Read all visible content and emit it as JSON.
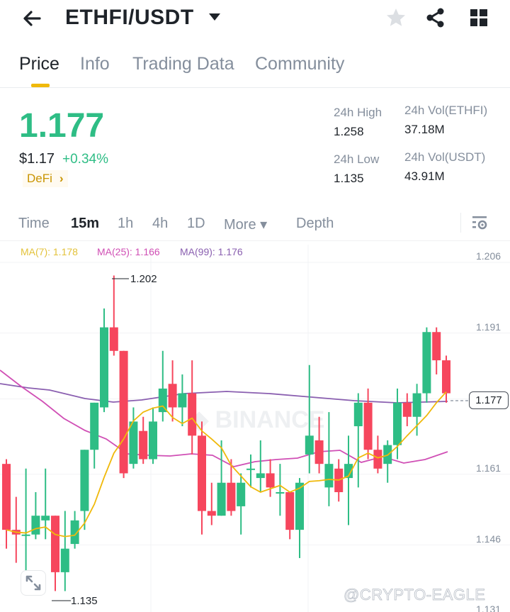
{
  "header": {
    "pair": "ETHFI/USDT",
    "icons": [
      "back-arrow-icon",
      "caret-down-icon",
      "star-icon",
      "share-icon",
      "grid-icon"
    ]
  },
  "tabs": [
    {
      "label": "Price",
      "active": true
    },
    {
      "label": "Info",
      "active": false
    },
    {
      "label": "Trading Data",
      "active": false
    },
    {
      "label": "Community",
      "active": false
    }
  ],
  "ticker": {
    "last_price": "1.177",
    "usd_price": "$1.17",
    "change": "+0.34%",
    "tag": "DeFi",
    "tag_chevron": "›",
    "high_label": "24h High",
    "high_value": "1.258",
    "low_label": "24h Low",
    "low_value": "1.135",
    "vol_base_label": "24h Vol(ETHFI)",
    "vol_base_value": "37.18M",
    "vol_quote_label": "24h Vol(USDT)",
    "vol_quote_value": "43.91M"
  },
  "intervals": [
    {
      "label": "Time",
      "active": false
    },
    {
      "label": "15m",
      "active": true
    },
    {
      "label": "1h",
      "active": false
    },
    {
      "label": "4h",
      "active": false
    },
    {
      "label": "1D",
      "active": false
    },
    {
      "label": "More ▾",
      "active": false
    },
    {
      "label": "Depth",
      "active": false
    }
  ],
  "ma": {
    "ma7": "MA(7): 1.178",
    "ma25": "MA(25): 1.166",
    "ma99": "MA(99): 1.176"
  },
  "colors": {
    "up": "#2ebd85",
    "down": "#f6465d",
    "ma7": "#f0b90b",
    "ma25": "#d04fb5",
    "ma99": "#8a5fb0",
    "accent": "#f0b90b"
  },
  "chart": {
    "current_price_label": "1.177",
    "high_marker": "1.202",
    "low_marker": "1.135",
    "watermark": "BINANCE",
    "credit": "@CRYPTO-EAGLE"
  },
  "chart_data": {
    "type": "candlestick",
    "title": "ETHFI/USDT 15m",
    "y_ticks": [
      "1.206",
      "1.191",
      "1.177",
      "1.161",
      "1.146",
      "1.131"
    ],
    "ylim": [
      1.131,
      1.206
    ],
    "annotations": {
      "high": 1.202,
      "low": 1.135,
      "last": 1.177
    },
    "series": [
      {
        "name": "MA(7)",
        "last": 1.178
      },
      {
        "name": "MA(25)",
        "last": 1.166
      },
      {
        "name": "MA(99)",
        "last": 1.176
      }
    ],
    "candles": [
      {
        "o": 1.162,
        "c": 1.148,
        "h": 1.163,
        "l": 1.144,
        "dir": "down"
      },
      {
        "o": 1.148,
        "c": 1.147,
        "h": 1.155,
        "l": 1.141,
        "dir": "down"
      },
      {
        "o": 1.147,
        "c": 1.147,
        "h": 1.161,
        "l": 1.139,
        "dir": "up"
      },
      {
        "o": 1.147,
        "c": 1.151,
        "h": 1.156,
        "l": 1.146,
        "dir": "up"
      },
      {
        "o": 1.151,
        "c": 1.15,
        "h": 1.161,
        "l": 1.146,
        "dir": "up"
      },
      {
        "o": 1.151,
        "c": 1.139,
        "h": 1.151,
        "l": 1.135,
        "dir": "down"
      },
      {
        "o": 1.139,
        "c": 1.144,
        "h": 1.152,
        "l": 1.135,
        "dir": "up"
      },
      {
        "o": 1.145,
        "c": 1.15,
        "h": 1.152,
        "l": 1.144,
        "dir": "up"
      },
      {
        "o": 1.152,
        "c": 1.165,
        "h": 1.165,
        "l": 1.148,
        "dir": "up"
      },
      {
        "o": 1.165,
        "c": 1.175,
        "h": 1.175,
        "l": 1.161,
        "dir": "up"
      },
      {
        "o": 1.174,
        "c": 1.191,
        "h": 1.195,
        "l": 1.173,
        "dir": "up"
      },
      {
        "o": 1.191,
        "c": 1.186,
        "h": 1.202,
        "l": 1.185,
        "dir": "down"
      },
      {
        "o": 1.186,
        "c": 1.16,
        "h": 1.186,
        "l": 1.159,
        "dir": "down"
      },
      {
        "o": 1.162,
        "c": 1.171,
        "h": 1.174,
        "l": 1.161,
        "dir": "up"
      },
      {
        "o": 1.169,
        "c": 1.163,
        "h": 1.172,
        "l": 1.162,
        "dir": "down"
      },
      {
        "o": 1.163,
        "c": 1.171,
        "h": 1.174,
        "l": 1.162,
        "dir": "up"
      },
      {
        "o": 1.173,
        "c": 1.178,
        "h": 1.186,
        "l": 1.171,
        "dir": "up"
      },
      {
        "o": 1.179,
        "c": 1.174,
        "h": 1.184,
        "l": 1.171,
        "dir": "down"
      },
      {
        "o": 1.174,
        "c": 1.177,
        "h": 1.181,
        "l": 1.17,
        "dir": "up"
      },
      {
        "o": 1.177,
        "c": 1.168,
        "h": 1.184,
        "l": 1.164,
        "dir": "down"
      },
      {
        "o": 1.168,
        "c": 1.152,
        "h": 1.171,
        "l": 1.147,
        "dir": "down"
      },
      {
        "o": 1.152,
        "c": 1.151,
        "h": 1.158,
        "l": 1.149,
        "dir": "down"
      },
      {
        "o": 1.151,
        "c": 1.158,
        "h": 1.167,
        "l": 1.151,
        "dir": "up"
      },
      {
        "o": 1.158,
        "c": 1.152,
        "h": 1.163,
        "l": 1.151,
        "dir": "down"
      },
      {
        "o": 1.153,
        "c": 1.158,
        "h": 1.16,
        "l": 1.147,
        "dir": "up"
      },
      {
        "o": 1.161,
        "c": 1.161,
        "h": 1.164,
        "l": 1.157,
        "dir": "up"
      },
      {
        "o": 1.159,
        "c": 1.16,
        "h": 1.167,
        "l": 1.156,
        "dir": "up"
      },
      {
        "o": 1.16,
        "c": 1.157,
        "h": 1.163,
        "l": 1.155,
        "dir": "down"
      },
      {
        "o": 1.156,
        "c": 1.156,
        "h": 1.162,
        "l": 1.151,
        "dir": "up"
      },
      {
        "o": 1.156,
        "c": 1.148,
        "h": 1.156,
        "l": 1.146,
        "dir": "down"
      },
      {
        "o": 1.148,
        "c": 1.158,
        "h": 1.159,
        "l": 1.142,
        "dir": "up"
      },
      {
        "o": 1.164,
        "c": 1.168,
        "h": 1.183,
        "l": 1.16,
        "dir": "up"
      },
      {
        "o": 1.167,
        "c": 1.162,
        "h": 1.172,
        "l": 1.16,
        "dir": "down"
      },
      {
        "o": 1.157,
        "c": 1.162,
        "h": 1.173,
        "l": 1.153,
        "dir": "up"
      },
      {
        "o": 1.161,
        "c": 1.156,
        "h": 1.163,
        "l": 1.154,
        "dir": "down"
      },
      {
        "o": 1.159,
        "c": 1.162,
        "h": 1.168,
        "l": 1.149,
        "dir": "up"
      },
      {
        "o": 1.17,
        "c": 1.175,
        "h": 1.177,
        "l": 1.157,
        "dir": "up"
      },
      {
        "o": 1.175,
        "c": 1.165,
        "h": 1.178,
        "l": 1.163,
        "dir": "down"
      },
      {
        "o": 1.165,
        "c": 1.161,
        "h": 1.168,
        "l": 1.16,
        "dir": "down"
      },
      {
        "o": 1.162,
        "c": 1.166,
        "h": 1.167,
        "l": 1.158,
        "dir": "up"
      },
      {
        "o": 1.166,
        "c": 1.175,
        "h": 1.178,
        "l": 1.163,
        "dir": "up"
      },
      {
        "o": 1.175,
        "c": 1.172,
        "h": 1.177,
        "l": 1.17,
        "dir": "down"
      },
      {
        "o": 1.172,
        "c": 1.177,
        "h": 1.179,
        "l": 1.168,
        "dir": "up"
      },
      {
        "o": 1.177,
        "c": 1.19,
        "h": 1.191,
        "l": 1.175,
        "dir": "up"
      },
      {
        "o": 1.19,
        "c": 1.184,
        "h": 1.191,
        "l": 1.181,
        "dir": "down"
      },
      {
        "o": 1.184,
        "c": 1.177,
        "h": 1.185,
        "l": 1.175,
        "dir": "down"
      }
    ]
  }
}
